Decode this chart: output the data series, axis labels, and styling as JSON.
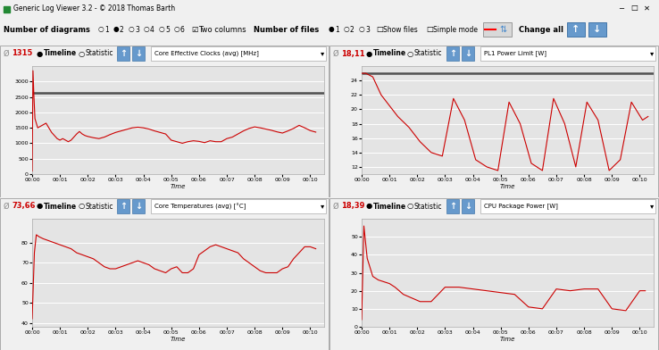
{
  "title_bar": "Generic Log Viewer 3.2 - © 2018 Thomas Barth",
  "bg_color": "#f0f0f0",
  "plot_bg_color": "#e4e4e4",
  "grid_color": "#ffffff",
  "line_color": "#cc0000",
  "hline_color": "#505050",
  "titlebar_color": "#c8c8c8",
  "panels": [
    {
      "avg_symbol": "Ø",
      "avg_value": "1315",
      "avg_color": "#cc0000",
      "title": "Core Effective Clocks (avg) [MHz]",
      "ylabel_ticks": [
        0,
        500,
        1000,
        1500,
        2000,
        2500,
        3000
      ],
      "ylim": [
        0,
        3500
      ],
      "hline_y": 2620,
      "row": 0,
      "col": 0,
      "data_x": [
        0,
        0.03,
        0.06,
        0.1,
        0.15,
        0.2,
        0.3,
        0.4,
        0.5,
        0.6,
        0.7,
        0.8,
        0.9,
        1.0,
        1.1,
        1.2,
        1.3,
        1.4,
        1.5,
        1.6,
        1.7,
        1.8,
        1.9,
        2.0,
        2.2,
        2.4,
        2.6,
        2.8,
        3.0,
        3.2,
        3.4,
        3.6,
        3.8,
        4.0,
        4.2,
        4.4,
        4.6,
        4.8,
        5.0,
        5.2,
        5.4,
        5.6,
        5.8,
        6.0,
        6.2,
        6.4,
        6.6,
        6.8,
        7.0,
        7.2,
        7.4,
        7.6,
        7.8,
        8.0,
        8.2,
        8.4,
        8.6,
        8.8,
        9.0,
        9.2,
        9.4,
        9.6,
        9.8,
        10.0,
        10.2
      ],
      "data_y": [
        100,
        3350,
        2600,
        1800,
        1650,
        1500,
        1550,
        1600,
        1650,
        1500,
        1350,
        1250,
        1150,
        1100,
        1150,
        1100,
        1050,
        1100,
        1200,
        1300,
        1380,
        1300,
        1250,
        1220,
        1180,
        1150,
        1200,
        1280,
        1350,
        1400,
        1450,
        1500,
        1520,
        1500,
        1460,
        1400,
        1350,
        1300,
        1100,
        1050,
        1000,
        1050,
        1080,
        1060,
        1020,
        1080,
        1050,
        1050,
        1150,
        1200,
        1300,
        1400,
        1480,
        1530,
        1500,
        1460,
        1420,
        1370,
        1330,
        1400,
        1480,
        1580,
        1500,
        1410,
        1360
      ]
    },
    {
      "avg_symbol": "Ø",
      "avg_value": "18,11",
      "avg_color": "#cc0000",
      "title": "PL1 Power Limit [W]",
      "ylabel_ticks": [
        12,
        14,
        16,
        18,
        20,
        22,
        24
      ],
      "ylim": [
        11,
        26
      ],
      "hline_y": 25.0,
      "row": 0,
      "col": 1,
      "data_x": [
        0,
        0.15,
        0.4,
        0.7,
        1.0,
        1.3,
        1.7,
        2.1,
        2.5,
        2.9,
        3.3,
        3.7,
        4.1,
        4.5,
        4.9,
        5.3,
        5.7,
        6.1,
        6.5,
        6.9,
        7.3,
        7.7,
        8.1,
        8.5,
        8.9,
        9.3,
        9.7,
        10.1,
        10.3
      ],
      "data_y": [
        25,
        25,
        24.5,
        22,
        20.5,
        19,
        17.5,
        15.5,
        14,
        13.5,
        21.5,
        18.5,
        13,
        12,
        11.5,
        21,
        18,
        12.5,
        11.5,
        21.5,
        18,
        12,
        21,
        18.5,
        11.5,
        13,
        21,
        18.5,
        19
      ]
    },
    {
      "avg_symbol": "Ø",
      "avg_value": "73,66",
      "avg_color": "#cc0000",
      "title": "Core Temperatures (avg) [°C]",
      "ylabel_ticks": [
        40,
        50,
        60,
        70,
        80
      ],
      "ylim": [
        38,
        92
      ],
      "hline_y": null,
      "row": 1,
      "col": 0,
      "data_x": [
        0,
        0.08,
        0.15,
        0.25,
        0.4,
        0.6,
        0.8,
        1.0,
        1.2,
        1.4,
        1.6,
        1.8,
        2.0,
        2.2,
        2.4,
        2.6,
        2.8,
        3.0,
        3.2,
        3.4,
        3.6,
        3.8,
        4.0,
        4.2,
        4.4,
        4.6,
        4.8,
        5.0,
        5.2,
        5.4,
        5.6,
        5.8,
        6.0,
        6.2,
        6.4,
        6.6,
        6.8,
        7.0,
        7.2,
        7.4,
        7.6,
        7.8,
        8.0,
        8.2,
        8.4,
        8.6,
        8.8,
        9.0,
        9.2,
        9.4,
        9.6,
        9.8,
        10.0,
        10.2
      ],
      "data_y": [
        42,
        75,
        84,
        83,
        82,
        81,
        80,
        79,
        78,
        77,
        75,
        74,
        73,
        72,
        70,
        68,
        67,
        67,
        68,
        69,
        70,
        71,
        70,
        69,
        67,
        66,
        65,
        67,
        68,
        65,
        65,
        67,
        74,
        76,
        78,
        79,
        78,
        77,
        76,
        75,
        72,
        70,
        68,
        66,
        65,
        65,
        65,
        67,
        68,
        72,
        75,
        78,
        78,
        77
      ]
    },
    {
      "avg_symbol": "Ø",
      "avg_value": "18,39",
      "avg_color": "#cc0000",
      "title": "CPU Package Power [W]",
      "ylabel_ticks": [
        0,
        10,
        20,
        30,
        40,
        50
      ],
      "ylim": [
        0,
        60
      ],
      "hline_y": null,
      "row": 1,
      "col": 1,
      "data_x": [
        0,
        0.08,
        0.2,
        0.4,
        0.6,
        0.8,
        1.0,
        1.2,
        1.5,
        1.8,
        2.1,
        2.5,
        3.0,
        3.5,
        4.0,
        4.5,
        5.0,
        5.5,
        6.0,
        6.5,
        7.0,
        7.5,
        8.0,
        8.5,
        9.0,
        9.5,
        10.0,
        10.2
      ],
      "data_y": [
        4,
        56,
        38,
        28,
        26,
        25,
        24,
        22,
        18,
        16,
        14,
        14,
        22,
        22,
        21,
        20,
        19,
        18,
        11,
        10,
        21,
        20,
        21,
        21,
        10,
        9,
        20,
        20
      ]
    }
  ]
}
